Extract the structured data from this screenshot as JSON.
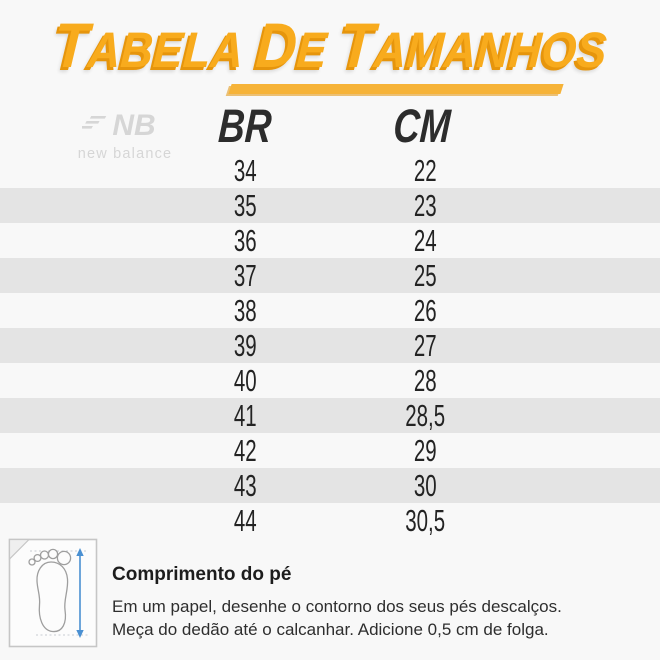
{
  "colors": {
    "background": "#f8f8f8",
    "gold": "#f8ab1d",
    "gold_dark": "#e6950c",
    "underline": "#f6b338",
    "row_alt": "#e4e4e4",
    "logo_gray": "#d6d6d6",
    "arrow_blue": "#4a90d2"
  },
  "title": {
    "text": "TABELA DE TAMANHOS"
  },
  "brand": {
    "mark": "NB",
    "name": "new balance"
  },
  "table": {
    "columns": [
      "BR",
      "CM"
    ],
    "rows": [
      [
        "34",
        "22"
      ],
      [
        "35",
        "23"
      ],
      [
        "36",
        "24"
      ],
      [
        "37",
        "25"
      ],
      [
        "38",
        "26"
      ],
      [
        "39",
        "27"
      ],
      [
        "40",
        "28"
      ],
      [
        "41",
        "28,5"
      ],
      [
        "42",
        "29"
      ],
      [
        "43",
        "30"
      ],
      [
        "44",
        "30,5"
      ]
    ]
  },
  "footer": {
    "heading": "Comprimento do pé",
    "line1": "Em um papel, desenhe o contorno dos seus pés descalços.",
    "line2": "Meça do dedão até o calcanhar. Adicione 0,5 cm de folga."
  },
  "chart_data": {
    "type": "table",
    "title": "TABELA DE TAMANHOS",
    "columns": [
      "BR",
      "CM"
    ],
    "rows": [
      [
        34,
        22
      ],
      [
        35,
        23
      ],
      [
        36,
        24
      ],
      [
        37,
        25
      ],
      [
        38,
        26
      ],
      [
        39,
        27
      ],
      [
        40,
        28
      ],
      [
        41,
        28.5
      ],
      [
        42,
        29
      ],
      [
        43,
        30
      ],
      [
        44,
        30.5
      ]
    ]
  }
}
